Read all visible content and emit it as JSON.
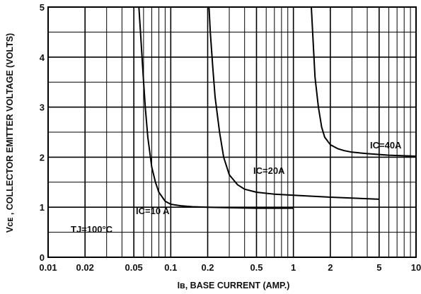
{
  "chart_data": {
    "type": "line",
    "x_scale": "log",
    "xlim": [
      0.01,
      10
    ],
    "ylim": [
      0,
      5
    ],
    "xlabel": "Iʙ, BASE CURRENT (AMP.)",
    "ylabel": "Vᴄᴇ , COLLECTOR EMITTER VOLTAGE (VOLTS)",
    "x_ticks": [
      0.01,
      0.02,
      0.05,
      0.1,
      0.2,
      0.5,
      1,
      2,
      5,
      10
    ],
    "x_tick_labels": [
      "0.01",
      "0.02",
      "0.05",
      "0.1",
      "0.2",
      "0.5",
      "1",
      "2",
      "5",
      "10"
    ],
    "y_ticks": [
      0,
      1,
      2,
      3,
      4,
      5
    ],
    "y_tick_labels": [
      "0",
      "1",
      "2",
      "3",
      "4",
      "5"
    ],
    "grid": true,
    "annotation": "TJ=100°C",
    "series": [
      {
        "name": "IC=10 A",
        "x": [
          0.055,
          0.057,
          0.059,
          0.062,
          0.065,
          0.07,
          0.075,
          0.08,
          0.09,
          0.1,
          0.12,
          0.15,
          0.2,
          0.3,
          0.5,
          1.0
        ],
        "y": [
          5.0,
          4.4,
          3.8,
          3.0,
          2.4,
          1.8,
          1.5,
          1.3,
          1.12,
          1.06,
          1.03,
          1.01,
          1.0,
          0.99,
          0.98,
          0.98
        ]
      },
      {
        "name": "IC=20A",
        "x": [
          0.205,
          0.21,
          0.22,
          0.23,
          0.25,
          0.27,
          0.3,
          0.35,
          0.4,
          0.5,
          0.7,
          1.0,
          2.0,
          5.0
        ],
        "y": [
          5.0,
          4.5,
          3.8,
          3.2,
          2.5,
          2.0,
          1.65,
          1.45,
          1.36,
          1.3,
          1.26,
          1.24,
          1.2,
          1.16
        ]
      },
      {
        "name": "IC=40A",
        "x": [
          1.4,
          1.45,
          1.5,
          1.6,
          1.7,
          1.8,
          2.0,
          2.3,
          2.6,
          3.0,
          4.0,
          6.0,
          10.0
        ],
        "y": [
          5.0,
          4.3,
          3.6,
          3.0,
          2.6,
          2.4,
          2.25,
          2.17,
          2.13,
          2.1,
          2.07,
          2.04,
          2.02
        ]
      }
    ]
  }
}
